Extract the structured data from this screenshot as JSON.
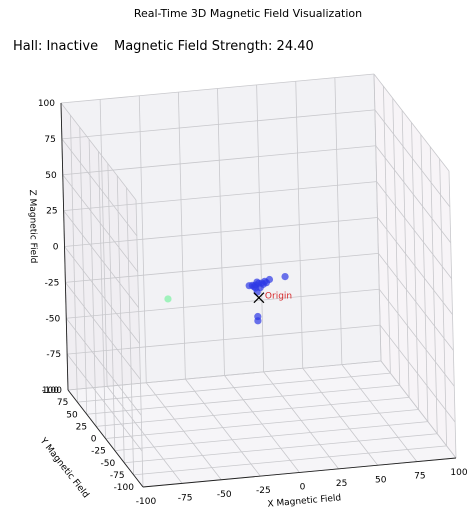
{
  "title": "Real-Time 3D Magnetic Field Visualization",
  "status": {
    "hall": "Hall: Inactive",
    "strength": "Magnetic Field Strength: 24.40"
  },
  "chart_data": {
    "type": "scatter",
    "title": "Real-Time 3D Magnetic Field Visualization",
    "xlabel": "X Magnetic Field",
    "ylabel": "Y Magnetic Field",
    "zlabel": "Z Magnetic Field",
    "xlim": [
      -100,
      100
    ],
    "ylim": [
      -100,
      100
    ],
    "zlim": [
      -100,
      100
    ],
    "x_ticks": [
      -100,
      -75,
      -50,
      -25,
      0,
      25,
      50,
      75,
      100
    ],
    "y_ticks": [
      -100,
      -75,
      -50,
      -25,
      0,
      25,
      50,
      75,
      100
    ],
    "z_ticks": [
      -100,
      -75,
      -50,
      -25,
      0,
      25,
      50,
      75,
      100
    ],
    "grid": true,
    "series": [
      {
        "color": "#2d39e6",
        "points": [
          [
            -6,
            0,
            -3
          ],
          [
            -4,
            0,
            -3
          ],
          [
            -2,
            0,
            -3
          ],
          [
            0,
            0,
            -2
          ],
          [
            2,
            0,
            -2
          ],
          [
            4,
            0,
            -1
          ],
          [
            1,
            0,
            -5
          ],
          [
            -3,
            0,
            -4
          ],
          [
            3,
            0,
            -3
          ],
          [
            -1,
            0,
            -1
          ],
          [
            17,
            0,
            1
          ],
          [
            7,
            0,
            0
          ],
          [
            -1,
            0,
            -8
          ],
          [
            -1,
            0,
            -25
          ],
          [
            -1,
            0,
            -28
          ],
          [
            -2,
            0,
            -5
          ],
          [
            5,
            0,
            -2
          ]
        ]
      },
      {
        "color": "#7ef2a4",
        "points": [
          [
            -58,
            0,
            -7
          ]
        ]
      }
    ],
    "annotations": [
      {
        "label": "Origin",
        "color": "#d62728",
        "x": 0,
        "y": 0,
        "z": -12
      }
    ]
  }
}
